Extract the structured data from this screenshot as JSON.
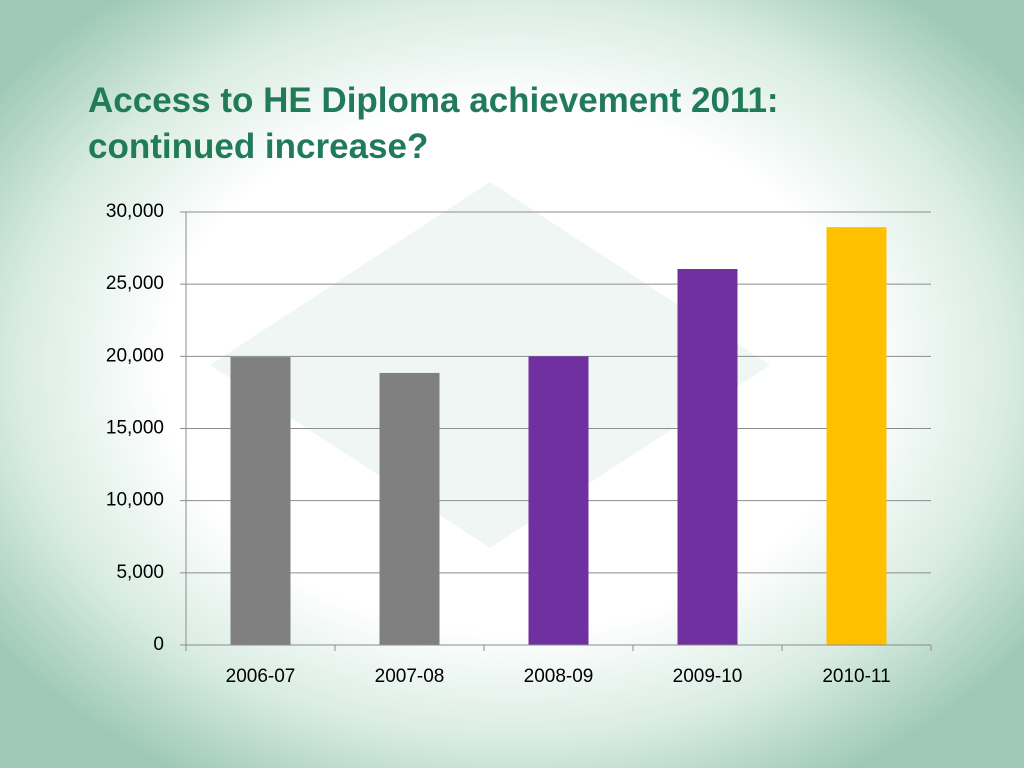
{
  "chart_data": {
    "type": "bar",
    "title": "Access to HE Diploma achievement 2011: continued increase?",
    "categories": [
      "2006-07",
      "2007-08",
      "2008-09",
      "2009-10",
      "2010-11"
    ],
    "values": [
      19950,
      18850,
      20000,
      26050,
      28950
    ],
    "colors": [
      "#808080",
      "#808080",
      "#7030a0",
      "#7030a0",
      "#ffc000"
    ],
    "ylim": [
      0,
      30000
    ],
    "yticks": [
      0,
      {
        "value": 5000,
        "label": "5,000"
      },
      {
        "value": 10000,
        "label": "10,000"
      },
      {
        "value": 15000,
        "label": "15,000"
      },
      {
        "value": 20000,
        "label": "20,000"
      },
      {
        "value": 25000,
        "label": "25,000"
      },
      {
        "value": 30000,
        "label": "30,000"
      }
    ],
    "grid": true
  }
}
